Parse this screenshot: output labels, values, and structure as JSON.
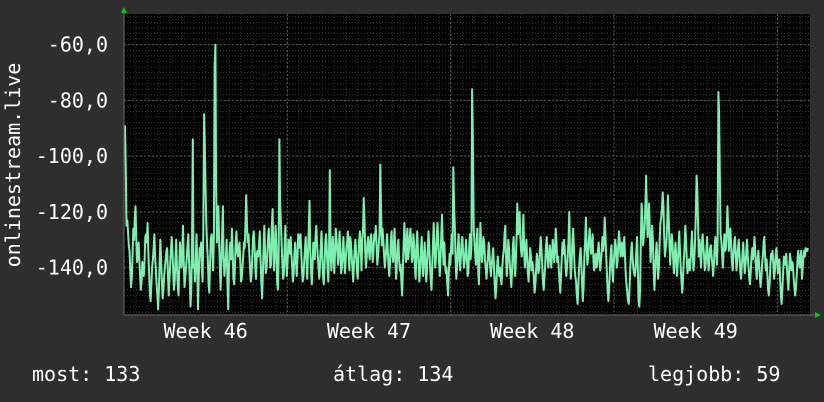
{
  "chart_data": {
    "type": "line",
    "ylabel": "onlinestream.live",
    "ylim": [
      -157,
      -49
    ],
    "yticks": [
      {
        "value": -60,
        "label": "-60,0"
      },
      {
        "value": -80,
        "label": "-80,0"
      },
      {
        "value": -100,
        "label": "-100,0"
      },
      {
        "value": -120,
        "label": "-120,0"
      },
      {
        "value": -140,
        "label": "-140,0"
      }
    ],
    "xlim": [
      0,
      4.2
    ],
    "xticks": [
      {
        "value": 0.5,
        "label": "Week 46"
      },
      {
        "value": 1.5,
        "label": "Week 47"
      },
      {
        "value": 2.5,
        "label": "Week 48"
      },
      {
        "value": 3.5,
        "label": "Week 49"
      }
    ],
    "grid": true,
    "colors": {
      "background": "#2e2e2e",
      "plot": "#000000",
      "line": "#7df0b0",
      "grid": "#444444",
      "arrow": "#00cc00"
    },
    "series": [
      {
        "y": [
          -89,
          -105,
          -125,
          -123,
          -127,
          -132,
          -134,
          -141,
          -147,
          -144,
          -136,
          -126,
          -130,
          -122,
          -118,
          -130,
          -138,
          -135,
          -131,
          -137,
          -143,
          -148,
          -145,
          -138,
          -140,
          -143,
          -137,
          -129,
          -128,
          -131,
          -124,
          -134,
          -142,
          -149,
          -152,
          -146,
          -140,
          -137,
          -133,
          -128,
          -136,
          -141,
          -146,
          -150,
          -155,
          -148,
          -139,
          -130,
          -137,
          -145,
          -151,
          -148,
          -143,
          -140,
          -137,
          -134,
          -133,
          -142,
          -150,
          -144,
          -139,
          -134,
          -129,
          -134,
          -141,
          -148,
          -145,
          -136,
          -130,
          -140,
          -146,
          -150,
          -141,
          -131,
          -135,
          -140,
          -136,
          -125,
          -137,
          -147,
          -144,
          -140,
          -137,
          -132,
          -128,
          -137,
          -145,
          -154,
          -148,
          -132,
          -94,
          -140,
          -139,
          -145,
          -137,
          -128,
          -140,
          -155,
          -143,
          -133,
          -136,
          -131,
          -140,
          -145,
          -128,
          -85,
          -96,
          -112,
          -124,
          -132,
          -137,
          -146,
          -149,
          -138,
          -130,
          -128,
          -134,
          -141,
          -128,
          -68,
          -60,
          -110,
          -131,
          -126,
          -118,
          -130,
          -140,
          -148,
          -138,
          -128,
          -118,
          -136,
          -143,
          -139,
          -136,
          -130,
          -145,
          -155,
          -141,
          -133,
          -131,
          -137,
          -126,
          -134,
          -144,
          -146,
          -140,
          -131,
          -127,
          -134,
          -136,
          -133,
          -131,
          -137,
          -145,
          -144,
          -140,
          -136,
          -131,
          -133,
          -124,
          -114,
          -125,
          -131,
          -128,
          -135,
          -140,
          -145,
          -143,
          -136,
          -129,
          -127,
          -132,
          -140,
          -144,
          -135,
          -134,
          -136,
          -132,
          -127,
          -136,
          -145,
          -151,
          -143,
          -133,
          -125,
          -135,
          -142,
          -140,
          -135,
          -129,
          -126,
          -133,
          -140,
          -139,
          -125,
          -119,
          -132,
          -141,
          -134,
          -125,
          -132,
          -145,
          -148,
          -138,
          -94,
          -116,
          -124,
          -131,
          -139,
          -144,
          -142,
          -133,
          -125,
          -137,
          -143,
          -137,
          -130,
          -132,
          -135,
          -129,
          -135,
          -140,
          -145,
          -142,
          -135,
          -131,
          -137,
          -143,
          -137,
          -128,
          -133,
          -130,
          -128,
          -134,
          -141,
          -145,
          -143,
          -138,
          -133,
          -129,
          -137,
          -144,
          -135,
          -127,
          -116,
          -133,
          -140,
          -146,
          -140,
          -131,
          -133,
          -137,
          -129,
          -125,
          -131,
          -136,
          -140,
          -144,
          -139,
          -132,
          -127,
          -136,
          -143,
          -146,
          -139,
          -131,
          -128,
          -133,
          -141,
          -145,
          -132,
          -105,
          -134,
          -141,
          -135,
          -129,
          -136,
          -142,
          -134,
          -126,
          -130,
          -135,
          -139,
          -133,
          -127,
          -135,
          -142,
          -140,
          -134,
          -129,
          -136,
          -142,
          -138,
          -133,
          -131,
          -127,
          -136,
          -141,
          -129,
          -131,
          -136,
          -140,
          -145,
          -139,
          -133,
          -130,
          -135,
          -141,
          -144,
          -137,
          -130,
          -127,
          -133,
          -141,
          -130,
          -127,
          -115,
          -123,
          -134,
          -140,
          -136,
          -131,
          -129,
          -134,
          -137,
          -131,
          -128,
          -133,
          -138,
          -134,
          -128,
          -130,
          -125,
          -132,
          -139,
          -136,
          -131,
          -128,
          -103,
          -118,
          -132,
          -126,
          -130,
          -135,
          -140,
          -137,
          -133,
          -128,
          -134,
          -140,
          -143,
          -138,
          -131,
          -127,
          -135,
          -138,
          -132,
          -126,
          -136,
          -144,
          -139,
          -132,
          -130,
          -137,
          -141,
          -139,
          -145,
          -150,
          -140,
          -132,
          -124,
          -131,
          -138,
          -132,
          -126,
          -137,
          -134,
          -130,
          -126,
          -131,
          -138,
          -136,
          -128,
          -132,
          -140,
          -144,
          -134,
          -127,
          -133,
          -140,
          -145,
          -140,
          -134,
          -129,
          -138,
          -143,
          -136,
          -131,
          -138,
          -145,
          -141,
          -134,
          -127,
          -132,
          -139,
          -144,
          -148,
          -140,
          -131,
          -124,
          -133,
          -140,
          -136,
          -129,
          -124,
          -130,
          -138,
          -143,
          -137,
          -128,
          -121,
          -132,
          -139,
          -131,
          -138,
          -142,
          -140,
          -146,
          -150,
          -142,
          -135,
          -139,
          -133,
          -128,
          -135,
          -104,
          -118,
          -125,
          -137,
          -144,
          -140,
          -133,
          -128,
          -136,
          -141,
          -136,
          -131,
          -129,
          -135,
          -140,
          -138,
          -134,
          -130,
          -137,
          -143,
          -142,
          -134,
          -128,
          -137,
          -133,
          -76,
          -95,
          -126,
          -131,
          -135,
          -139,
          -130,
          -126,
          -141,
          -146,
          -135,
          -124,
          -132,
          -138,
          -134,
          -129,
          -131,
          -137,
          -140,
          -144,
          -140,
          -136,
          -131,
          -135,
          -140,
          -143,
          -139,
          -136,
          -133,
          -140,
          -146,
          -151,
          -148,
          -140,
          -136,
          -141,
          -143,
          -140,
          -144,
          -146,
          -140,
          -136,
          -134,
          -128,
          -125,
          -136,
          -143,
          -138,
          -130,
          -133,
          -139,
          -143,
          -147,
          -141,
          -133,
          -129,
          -137,
          -143,
          -138,
          -129,
          -117,
          -128,
          -122,
          -120,
          -129,
          -134,
          -136,
          -131,
          -121,
          -133,
          -140,
          -134,
          -130,
          -136,
          -142,
          -145,
          -139,
          -133,
          -136,
          -141,
          -138,
          -140,
          -144,
          -149,
          -146,
          -140,
          -135,
          -138,
          -142,
          -140,
          -134,
          -129,
          -133,
          -139,
          -145,
          -148,
          -144,
          -139,
          -133,
          -129,
          -136,
          -140,
          -137,
          -132,
          -135,
          -140,
          -136,
          -130,
          -133,
          -138,
          -134,
          -126,
          -131,
          -138,
          -136,
          -140,
          -145,
          -149,
          -143,
          -136,
          -131,
          -135,
          -130,
          -134,
          -139,
          -143,
          -140,
          -135,
          -131,
          -120,
          -136,
          -144,
          -140,
          -131,
          -126,
          -132,
          -140,
          -143,
          -145,
          -150,
          -153,
          -147,
          -140,
          -136,
          -133,
          -138,
          -146,
          -152,
          -147,
          -137,
          -131,
          -122,
          -131,
          -139,
          -136,
          -130,
          -126,
          -131,
          -135,
          -132,
          -128,
          -137,
          -141,
          -137,
          -135,
          -140,
          -139,
          -134,
          -131,
          -136,
          -141,
          -138,
          -134,
          -129,
          -134,
          -131,
          -122,
          -128,
          -136,
          -142,
          -149,
          -152,
          -147,
          -140,
          -135,
          -132,
          -141,
          -145,
          -139,
          -134,
          -130,
          -133,
          -140,
          -138,
          -132,
          -127,
          -130,
          -136,
          -133,
          -131,
          -136,
          -134,
          -129,
          -136,
          -143,
          -146,
          -149,
          -152,
          -153,
          -148,
          -140,
          -135,
          -131,
          -136,
          -140,
          -142,
          -143,
          -140,
          -134,
          -129,
          -140,
          -152,
          -154,
          -148,
          -131,
          -117,
          -122,
          -132,
          -129,
          -126,
          -119,
          -107,
          -120,
          -129,
          -124,
          -117,
          -129,
          -138,
          -132,
          -125,
          -130,
          -140,
          -148,
          -142,
          -135,
          -131,
          -138,
          -144,
          -140,
          -130,
          -124,
          -122,
          -119,
          -113,
          -118,
          -129,
          -136,
          -133,
          -131,
          -124,
          -114,
          -122,
          -131,
          -139,
          -133,
          -128,
          -131,
          -137,
          -142,
          -136,
          -131,
          -136,
          -143,
          -139,
          -133,
          -127,
          -134,
          -140,
          -145,
          -149,
          -144,
          -138,
          -133,
          -125,
          -130,
          -137,
          -142,
          -139,
          -137,
          -141,
          -138,
          -132,
          -127,
          -135,
          -141,
          -137,
          -131,
          -121,
          -107,
          -112,
          -125,
          -136,
          -130,
          -135,
          -140,
          -132,
          -128,
          -132,
          -136,
          -141,
          -139,
          -134,
          -129,
          -136,
          -141,
          -137,
          -133,
          -132,
          -136,
          -139,
          -143,
          -139,
          -133,
          -129,
          -134,
          -139,
          -130,
          -77,
          -84,
          -109,
          -128,
          -131,
          -136,
          -140,
          -133,
          -128,
          -134,
          -133,
          -127,
          -118,
          -126,
          -134,
          -131,
          -126,
          -132,
          -138,
          -141,
          -136,
          -131,
          -129,
          -135,
          -141,
          -138,
          -133,
          -130,
          -135,
          -141,
          -144,
          -140,
          -135,
          -131,
          -137,
          -142,
          -139,
          -134,
          -130,
          -136,
          -140,
          -144,
          -146,
          -141,
          -136,
          -133,
          -137,
          -133,
          -129,
          -135,
          -140,
          -144,
          -138,
          -134,
          -139,
          -143,
          -147,
          -144,
          -139,
          -136,
          -131,
          -129,
          -136,
          -141,
          -137,
          -142,
          -148,
          -150,
          -146,
          -140,
          -135,
          -137,
          -134,
          -139,
          -144,
          -141,
          -136,
          -133,
          -137,
          -142,
          -138,
          -137,
          -144,
          -150,
          -153,
          -148,
          -142,
          -136,
          -138,
          -139,
          -135,
          -140,
          -145,
          -148,
          -141,
          -135,
          -137,
          -141,
          -138,
          -139,
          -144,
          -147,
          -150,
          -147,
          -143,
          -137,
          -134,
          -138,
          -140,
          -136,
          -134,
          -144,
          -140,
          -136,
          -134,
          -136,
          -133,
          -134,
          -134,
          -133
        ]
      }
    ]
  },
  "stats": {
    "current": "most: 133",
    "average": "átlag: 134",
    "best": "legjobb: 59"
  }
}
